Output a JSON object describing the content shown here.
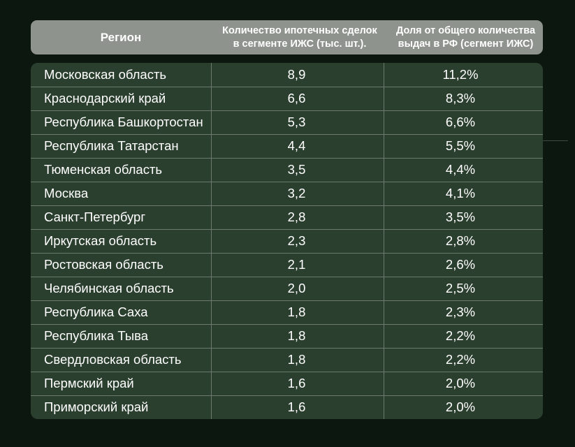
{
  "table": {
    "headers": [
      "Регион",
      "Количество ипотечных сделок\nв сегменте ИЖС (тыс. шт.).",
      "Доля от общего количества\nвыдач в РФ (сегмент ИЖС)"
    ],
    "rows": [
      {
        "region": "Московская область",
        "count": "8,9",
        "share": "11,2%"
      },
      {
        "region": "Краснодарский край",
        "count": "6,6",
        "share": "8,3%"
      },
      {
        "region": "Республика Башкортостан",
        "count": "5,3",
        "share": "6,6%"
      },
      {
        "region": "Республика Татарстан",
        "count": "4,4",
        "share": "5,5%"
      },
      {
        "region": "Тюменская область",
        "count": "3,5",
        "share": "4,4%"
      },
      {
        "region": "Москва",
        "count": "3,2",
        "share": "4,1%"
      },
      {
        "region": "Санкт-Петербург",
        "count": "2,8",
        "share": "3,5%"
      },
      {
        "region": "Иркутская область",
        "count": "2,3",
        "share": "2,8%"
      },
      {
        "region": "Ростовская область",
        "count": "2,1",
        "share": "2,6%"
      },
      {
        "region": "Челябинская область",
        "count": "2,0",
        "share": "2,5%"
      },
      {
        "region": "Республика Саха",
        "count": "1,8",
        "share": "2,3%"
      },
      {
        "region": "Республика Тыва",
        "count": "1,8",
        "share": "2,2%"
      },
      {
        "region": "Свердловская область",
        "count": "1,8",
        "share": "2,2%"
      },
      {
        "region": "Пермский край",
        "count": "1,6",
        "share": "2,0%"
      },
      {
        "region": "Приморский край",
        "count": "1,6",
        "share": "2,0%"
      }
    ]
  },
  "chart_data": {
    "type": "table",
    "columns": [
      "Регион",
      "Количество ипотечных сделок в сегменте ИЖС (тыс. шт.).",
      "Доля от общего количества выдач в РФ (сегмент ИЖС)"
    ],
    "rows": [
      [
        "Московская область",
        8.9,
        11.2
      ],
      [
        "Краснодарский край",
        6.6,
        8.3
      ],
      [
        "Республика Башкортостан",
        5.3,
        6.6
      ],
      [
        "Республика Татарстан",
        4.4,
        5.5
      ],
      [
        "Тюменская область",
        3.5,
        4.4
      ],
      [
        "Москва",
        3.2,
        4.1
      ],
      [
        "Санкт-Петербург",
        2.8,
        3.5
      ],
      [
        "Иркутская область",
        2.3,
        2.8
      ],
      [
        "Ростовская область",
        2.1,
        2.6
      ],
      [
        "Челябинская область",
        2.0,
        2.5
      ],
      [
        "Республика Саха",
        1.8,
        2.3
      ],
      [
        "Республика Тыва",
        1.8,
        2.2
      ],
      [
        "Свердловская область",
        1.8,
        2.2
      ],
      [
        "Пермский край",
        1.6,
        2.0
      ],
      [
        "Приморский край",
        1.6,
        2.0
      ]
    ]
  },
  "colors": {
    "background": "#0c1710",
    "header_bg": "#8e948d",
    "table_bg": "#2b3f2f",
    "grid_line": "#6d7b6f",
    "text": "#ffffff"
  }
}
